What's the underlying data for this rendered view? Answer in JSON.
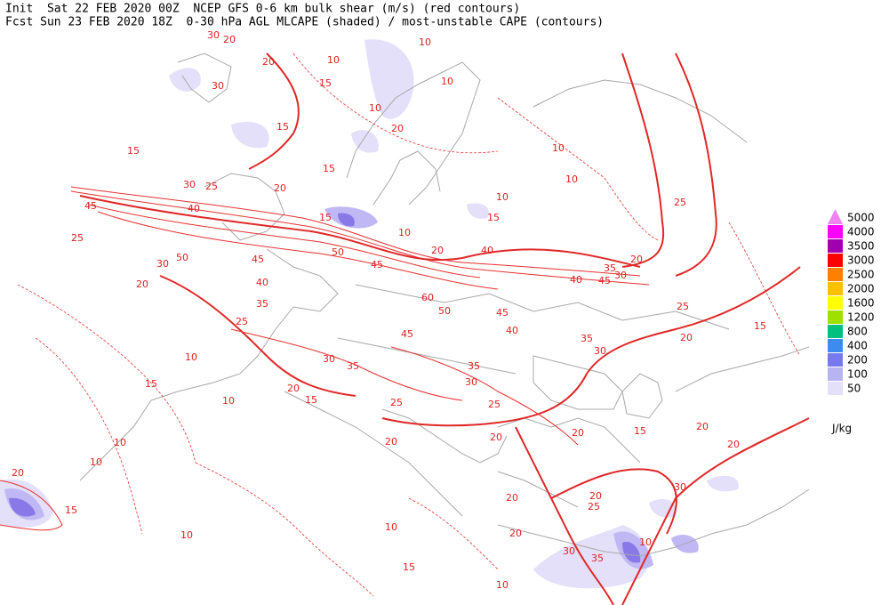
{
  "header": {
    "line1": "Init  Sat 22 FEB 2020 00Z  NCEP GFS 0-6 km bulk shear (m/s) (red contours)",
    "line2": "Fcst Sun 23 FEB 2020 18Z  0-30 hPa AGL MLCAPE (shaded) / most-unstable CAPE (contours)"
  },
  "legend": {
    "levels": [
      {
        "value": 5000,
        "color": "#ee82ee"
      },
      {
        "value": 4000,
        "color": "#ff00ff"
      },
      {
        "value": 3500,
        "color": "#a000b0"
      },
      {
        "value": 3000,
        "color": "#ff0000"
      },
      {
        "value": 2500,
        "color": "#ff8000"
      },
      {
        "value": 2000,
        "color": "#ffc000"
      },
      {
        "value": 1600,
        "color": "#ffff00"
      },
      {
        "value": 1200,
        "color": "#a0e000"
      },
      {
        "value": 800,
        "color": "#00c080"
      },
      {
        "value": 400,
        "color": "#3c8cf0"
      },
      {
        "value": 200,
        "color": "#7878f0"
      },
      {
        "value": 100,
        "color": "#b8b4f4"
      },
      {
        "value": 50,
        "color": "#e4e0fa"
      }
    ],
    "unit": "J/kg"
  },
  "contour_labels": [
    30,
    20,
    10,
    10,
    20,
    30,
    15,
    10,
    10,
    15,
    15,
    20,
    15,
    10,
    10,
    30,
    25,
    20,
    10,
    25,
    45,
    40,
    15,
    15,
    10,
    20,
    40,
    20,
    25,
    45,
    45,
    50,
    50,
    30,
    35,
    30,
    45,
    40,
    20,
    40,
    60,
    35,
    25,
    50,
    45,
    25,
    45,
    40,
    15,
    20,
    35,
    10,
    30,
    35,
    30,
    35,
    20,
    15,
    30,
    15,
    10,
    25,
    25,
    15,
    20,
    20,
    20,
    20,
    20,
    10,
    20,
    10,
    15,
    20,
    20,
    30,
    10,
    25,
    20,
    10,
    10,
    30,
    35,
    15,
    10
  ]
}
